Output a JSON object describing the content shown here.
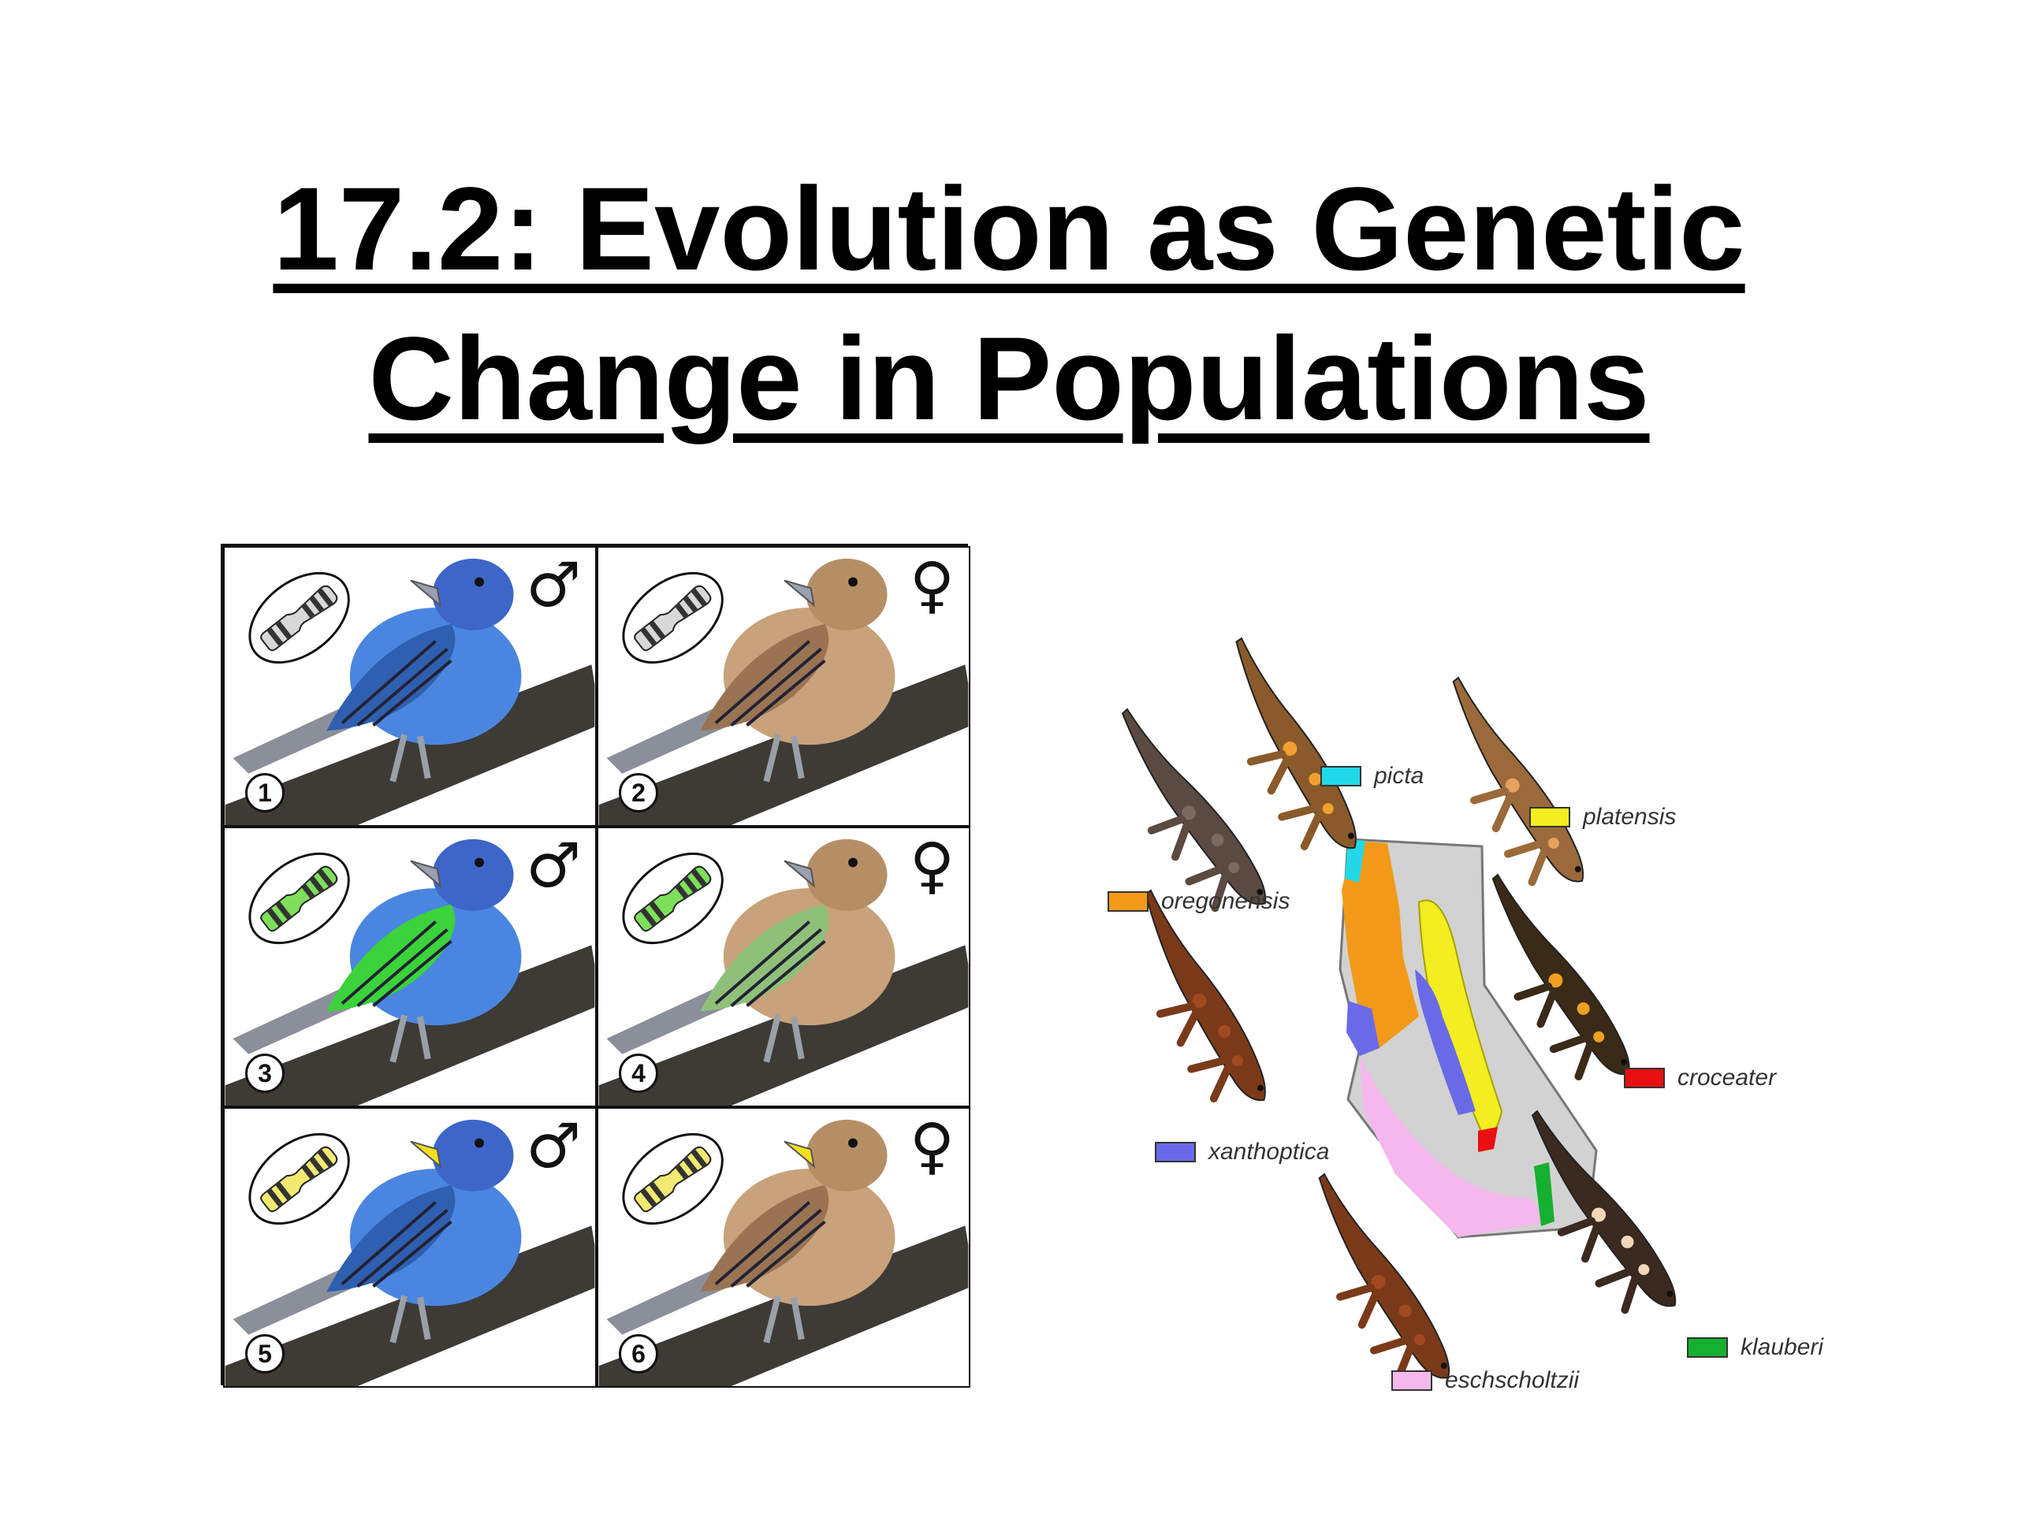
{
  "slide": {
    "title_line1": "17.2: Evolution as Genetic",
    "title_line2": "Change in Populations"
  },
  "bird_panels": [
    {
      "number": "1",
      "sex_symbol": "♂",
      "body": "#4a86e0",
      "chromosome": "#d8d8d8",
      "wing": "#2f5fb0",
      "beak": "#9aa0b0"
    },
    {
      "number": "2",
      "sex_symbol": "♀",
      "body": "#c8a27a",
      "chromosome": "#d8d8d8",
      "wing": "#9a7452",
      "beak": "#9aa0b0"
    },
    {
      "number": "3",
      "sex_symbol": "♂",
      "body": "#4a86e0",
      "chromosome": "#7ee05a",
      "wing": "#3bd23b",
      "beak": "#9aa0b0"
    },
    {
      "number": "4",
      "sex_symbol": "♀",
      "body": "#c8a27a",
      "chromosome": "#7ee05a",
      "wing": "#8fc07a",
      "beak": "#9aa0b0"
    },
    {
      "number": "5",
      "sex_symbol": "♂",
      "body": "#4a86e0",
      "chromosome": "#f2ea70",
      "wing": "#2f5fb0",
      "beak": "#f0e020"
    },
    {
      "number": "6",
      "sex_symbol": "♀",
      "body": "#c8a27a",
      "chromosome": "#f2ea70",
      "wing": "#9a7452",
      "beak": "#f0e020"
    }
  ],
  "salamander_legend": [
    {
      "label": "picta",
      "color": "#22d8e8"
    },
    {
      "label": "platensis",
      "color": "#f2ee20"
    },
    {
      "label": "oregonensis",
      "color": "#f29a18"
    },
    {
      "label": "croceater",
      "color": "#e81010"
    },
    {
      "label": "xanthoptica",
      "color": "#6a6ae8"
    },
    {
      "label": "eschscholtzii",
      "color": "#f4b8ec"
    },
    {
      "label": "klauberi",
      "color": "#16b030"
    }
  ],
  "colors": {
    "map_land": "#d2d2d2",
    "branch": "#3e3a36"
  }
}
